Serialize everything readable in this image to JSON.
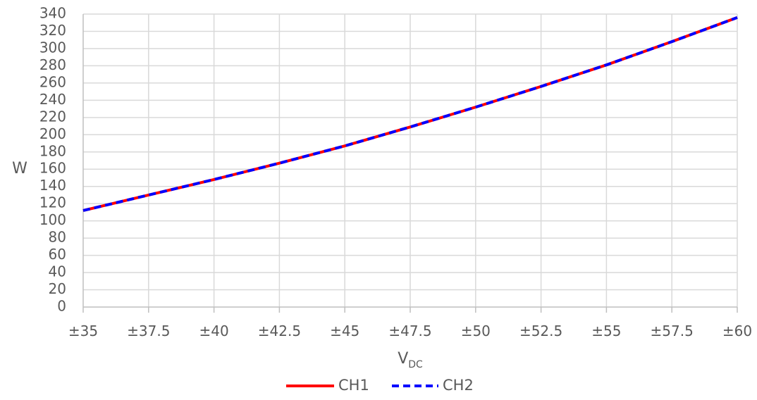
{
  "chart_data": {
    "type": "line",
    "title": "",
    "xlabel": "V",
    "xlabel_subscript": "DC",
    "ylabel": "W",
    "x": [
      35,
      37.5,
      40,
      42.5,
      45,
      47.5,
      50,
      52.5,
      55,
      57.5,
      60
    ],
    "x_tick_labels": [
      "±35",
      "±37.5",
      "±40",
      "±42.5",
      "±45",
      "±47.5",
      "±50",
      "±52.5",
      "±55",
      "±57.5",
      "±60"
    ],
    "y_tick_labels": [
      "0",
      "20",
      "40",
      "60",
      "80",
      "100",
      "120",
      "140",
      "160",
      "180",
      "200",
      "220",
      "240",
      "260",
      "280",
      "300",
      "320",
      "340"
    ],
    "ylim": [
      0,
      340
    ],
    "xlim": [
      35,
      60
    ],
    "grid": true,
    "legend_position": "bottom",
    "series": [
      {
        "name": "CH1",
        "color": "#ff0000",
        "style": "solid",
        "values": [
          112,
          130,
          148,
          167,
          187,
          209,
          232,
          256,
          281,
          308,
          336
        ]
      },
      {
        "name": "CH2",
        "color": "#0000ff",
        "style": "dashed",
        "values": [
          112,
          130,
          148,
          167,
          187,
          209,
          232,
          256,
          281,
          308,
          336
        ]
      }
    ]
  }
}
